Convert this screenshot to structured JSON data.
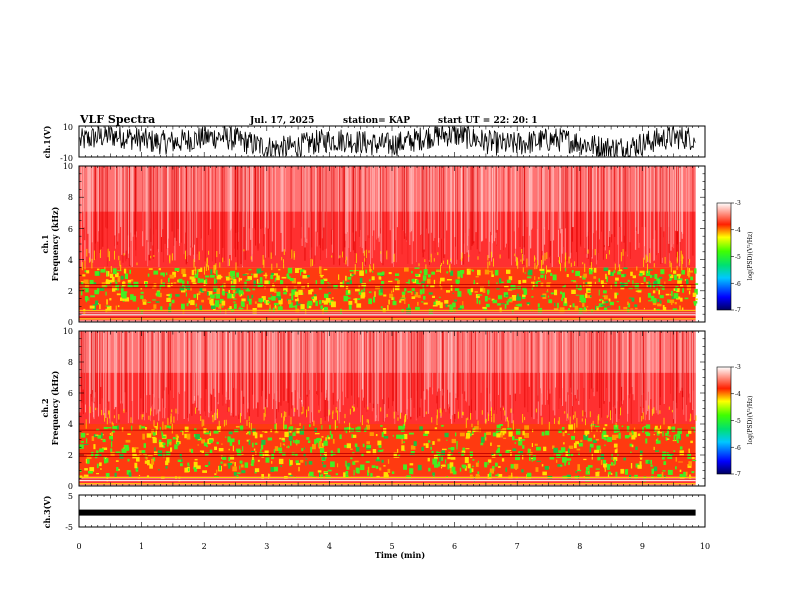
{
  "header": {
    "title": "VLF Spectra",
    "date": "Jul. 17, 2025",
    "station": "station= KAP",
    "start": "start  UT =  22: 20: 1"
  },
  "colors": {
    "spec_red": "#ff2a2a",
    "spec_pink": "#ffb0b0",
    "spec_yellow": "#ffe000",
    "spec_green": "#44ee22",
    "trace": "#000000"
  },
  "chart_data": [
    {
      "type": "line",
      "name": "ch1-waveform",
      "title": "VLF Spectra",
      "ylabel": "ch.1(V)",
      "ylim": [
        -10,
        10
      ],
      "yticks": [
        "10",
        "-10"
      ],
      "xlim": [
        0,
        9.85
      ],
      "description_values": "dense noise filling roughly -10 to 10 V"
    },
    {
      "type": "heatmap",
      "name": "ch1-spectrogram",
      "ylabel": "ch.1\nFrequency (kHz)",
      "ylabel_lines": [
        "ch.1",
        "Frequency (kHz)"
      ],
      "ylim": [
        0,
        10
      ],
      "yticks": [
        "0",
        "2",
        "4",
        "6",
        "8",
        "10"
      ],
      "xlim": [
        0,
        10
      ],
      "bands": [
        {
          "from": 0,
          "to": 0.8,
          "level": "mixed"
        },
        {
          "from": 0.8,
          "to": 3.5,
          "level": -5
        },
        {
          "from": 3.5,
          "to": 10,
          "level": -3.5
        }
      ],
      "lines_khz": [
        0.3,
        0.5,
        0.7,
        2.2,
        2.4
      ],
      "colorbar": {
        "min": -7,
        "max": -3,
        "ticks": [
          "-3",
          "-4",
          "-5",
          "-6",
          "-7"
        ],
        "label": "log(PSD)(V²/Hz)"
      }
    },
    {
      "type": "heatmap",
      "name": "ch2-spectrogram",
      "ylabel": "ch.2\nFrequency (kHz)",
      "ylabel_lines": [
        "ch.2",
        "Frequency (kHz)"
      ],
      "ylim": [
        0,
        10
      ],
      "yticks": [
        "0",
        "2",
        "4",
        "6",
        "8",
        "10"
      ],
      "xlim": [
        0,
        10
      ],
      "bands": [
        {
          "from": 0,
          "to": 0.6,
          "level": "mixed"
        },
        {
          "from": 0.6,
          "to": 4,
          "level": -5
        },
        {
          "from": 4,
          "to": 10,
          "level": -3.5
        }
      ],
      "lines_khz": [
        0.4,
        1.9,
        2.1,
        3.6
      ],
      "colorbar": {
        "min": -7,
        "max": -3,
        "ticks": [
          "-3",
          "-4",
          "-5",
          "-6",
          "-7"
        ],
        "label": "log(PSD)(V²/Hz)"
      }
    },
    {
      "type": "line",
      "name": "ch3-waveform",
      "ylabel": "ch.3(V)",
      "ylim": [
        -5,
        5
      ],
      "yticks": [
        "5",
        "-5"
      ],
      "xlim": [
        0,
        9.85
      ],
      "level_v": -0.5
    }
  ],
  "xaxis": {
    "label": "Time (min)",
    "ticks": [
      "0",
      "1",
      "2",
      "3",
      "4",
      "5",
      "6",
      "7",
      "8",
      "9",
      "10"
    ],
    "range": [
      0,
      10
    ]
  }
}
